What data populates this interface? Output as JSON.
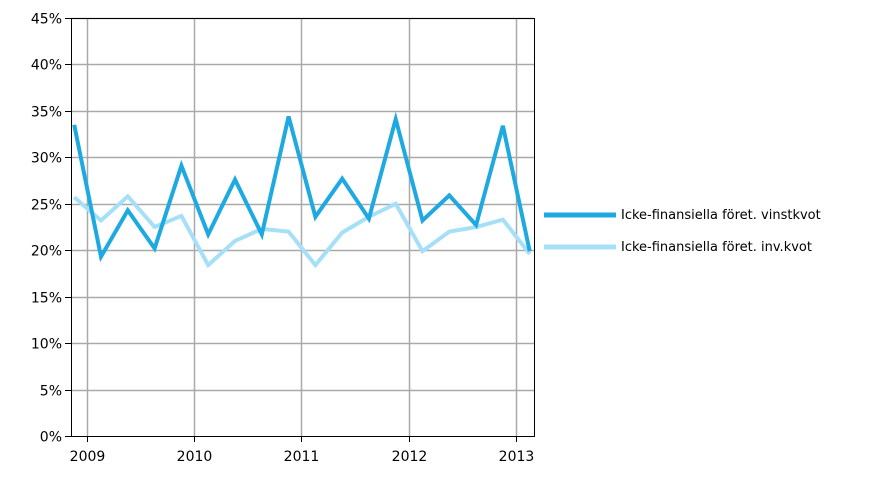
{
  "chart_data": {
    "type": "line",
    "title": "",
    "xlabel": "",
    "ylabel": "",
    "ylim": [
      0,
      45
    ],
    "xlim": [
      2008.85,
      2013.17
    ],
    "y_ticks": [
      "0%",
      "5%",
      "10%",
      "15%",
      "20%",
      "25%",
      "30%",
      "35%",
      "40%",
      "45%"
    ],
    "y_tick_values": [
      0,
      5,
      10,
      15,
      20,
      25,
      30,
      35,
      40,
      45
    ],
    "x_ticks": [
      "2009",
      "2010",
      "2011",
      "2012",
      "2013"
    ],
    "x_tick_values": [
      2009,
      2010,
      2011,
      2012,
      2013
    ],
    "grid": true,
    "legend_position": "right",
    "series": [
      {
        "name": "Icke-finansiella föret. vinstkvot",
        "color": "#1fa9e1",
        "x": [
          2008.88,
          2009.13,
          2009.38,
          2009.63,
          2009.88,
          2010.13,
          2010.38,
          2010.63,
          2010.88,
          2011.13,
          2011.38,
          2011.63,
          2011.88,
          2012.13,
          2012.38,
          2012.63,
          2012.88,
          2013.13
        ],
        "y": [
          33.5,
          19.3,
          24.3,
          20.2,
          29.1,
          21.7,
          27.6,
          21.7,
          34.4,
          23.6,
          27.7,
          23.4,
          34.1,
          23.2,
          25.9,
          22.7,
          33.4,
          19.9
        ]
      },
      {
        "name": "Icke-finansiella föret. inv.kvot",
        "color": "#a6dff8",
        "x": [
          2008.88,
          2009.13,
          2009.38,
          2009.63,
          2009.88,
          2010.13,
          2010.38,
          2010.63,
          2010.88,
          2011.13,
          2011.38,
          2011.63,
          2011.88,
          2012.13,
          2012.38,
          2012.63,
          2012.88,
          2013.13
        ],
        "y": [
          25.7,
          23.2,
          25.8,
          22.5,
          23.7,
          18.4,
          21.0,
          22.3,
          22.0,
          18.4,
          21.9,
          23.6,
          25.0,
          19.9,
          22.0,
          22.5,
          23.3,
          19.6
        ]
      }
    ]
  }
}
